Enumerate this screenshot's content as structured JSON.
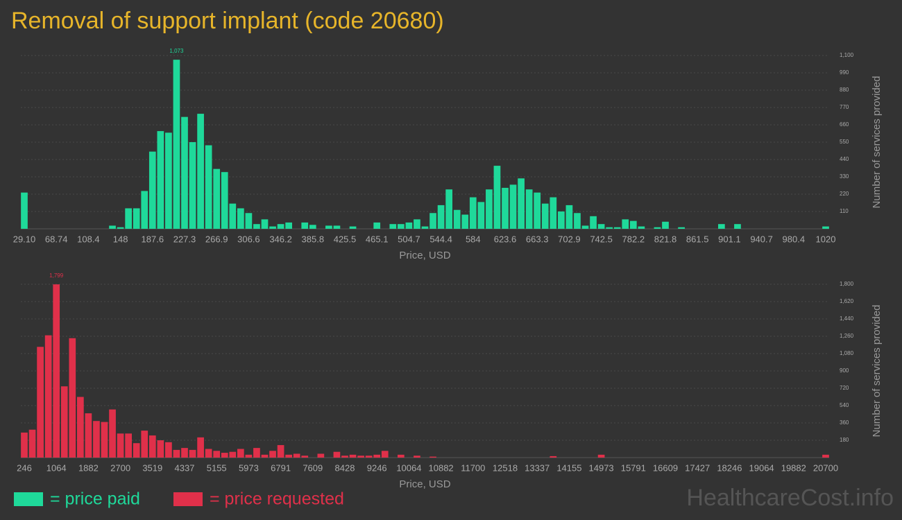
{
  "title": "Removal of support implant (code 20680)",
  "watermark": "HealthcareCost.info",
  "chart_data": [
    {
      "type": "bar",
      "color": "#1fd99a",
      "legend": "= price paid",
      "x_label": "Price, USD",
      "y_label": "Number of services provided",
      "categories": [
        "29.10",
        null,
        null,
        null,
        "68.74",
        null,
        null,
        null,
        "108.4",
        null,
        null,
        null,
        "148",
        null,
        null,
        null,
        "187.6",
        null,
        null,
        null,
        "227.3",
        null,
        null,
        null,
        "266.9",
        null,
        null,
        null,
        "306.6",
        null,
        null,
        null,
        "346.2",
        null,
        null,
        null,
        "385.8",
        null,
        null,
        null,
        "425.5",
        null,
        null,
        null,
        "465.1",
        null,
        null,
        null,
        "504.7",
        null,
        null,
        null,
        "544.4",
        null,
        null,
        null,
        "584",
        null,
        null,
        null,
        "623.6",
        null,
        null,
        null,
        "663.3",
        null,
        null,
        null,
        "702.9",
        null,
        null,
        null,
        "742.5",
        null,
        null,
        null,
        "782.2",
        null,
        null,
        null,
        "821.8",
        null,
        null,
        null,
        "861.5",
        null,
        null,
        null,
        "901.1",
        null,
        null,
        null,
        "940.7",
        null,
        null,
        null,
        "980.4",
        null,
        null,
        null,
        "1020"
      ],
      "values": [
        230,
        0,
        0,
        0,
        0,
        0,
        0,
        0,
        0,
        0,
        0,
        20,
        10,
        130,
        130,
        240,
        490,
        620,
        610,
        1073,
        710,
        550,
        730,
        530,
        380,
        360,
        160,
        130,
        100,
        30,
        60,
        15,
        30,
        40,
        0,
        40,
        25,
        0,
        20,
        20,
        0,
        15,
        0,
        0,
        40,
        0,
        30,
        30,
        40,
        60,
        15,
        100,
        150,
        250,
        120,
        90,
        200,
        170,
        250,
        400,
        260,
        280,
        320,
        250,
        230,
        160,
        200,
        110,
        150,
        100,
        20,
        80,
        30,
        10,
        10,
        60,
        50,
        15,
        0,
        10,
        45,
        0,
        10,
        0,
        0,
        0,
        0,
        30,
        0,
        30,
        0,
        0,
        0,
        0,
        0,
        0,
        0,
        0,
        0,
        0,
        15
      ],
      "value_labels": [
        null,
        null,
        null,
        null,
        null,
        null,
        null,
        null,
        null,
        null,
        null,
        null,
        null,
        null,
        null,
        null,
        null,
        null,
        null,
        "1,073",
        null,
        null,
        null,
        null,
        null,
        null,
        null,
        null,
        null,
        null,
        null,
        null,
        null,
        null,
        null,
        null,
        null,
        null,
        null,
        null,
        null,
        null,
        null,
        null,
        null,
        null,
        null,
        null,
        null,
        null,
        null,
        null,
        null,
        null,
        null,
        null,
        null,
        null,
        null,
        null,
        null,
        null,
        null,
        null,
        null,
        null,
        null,
        null,
        null,
        null,
        null,
        null,
        null,
        null,
        null,
        null,
        null,
        null,
        null,
        null,
        null,
        null,
        null,
        null,
        null,
        null,
        null,
        null,
        null,
        null,
        null,
        null,
        null,
        null,
        null,
        null,
        null,
        null,
        null,
        null,
        null
      ],
      "ylim": [
        0,
        1100
      ],
      "yticks": [
        110,
        220,
        330,
        440,
        550,
        660,
        770,
        880,
        990,
        {
          "value": 1100,
          "label": "1,100"
        }
      ],
      "grid": true
    },
    {
      "type": "bar",
      "color": "#e0304a",
      "legend": "= price requested",
      "x_label": "Price, USD",
      "y_label": "Number of services provided",
      "categories": [
        "246",
        null,
        null,
        null,
        "1064",
        null,
        null,
        null,
        "1882",
        null,
        null,
        null,
        "2700",
        null,
        null,
        null,
        "3519",
        null,
        null,
        null,
        "4337",
        null,
        null,
        null,
        "5155",
        null,
        null,
        null,
        "5973",
        null,
        null,
        null,
        "6791",
        null,
        null,
        null,
        "7609",
        null,
        null,
        null,
        "8428",
        null,
        null,
        null,
        "9246",
        null,
        null,
        null,
        "10064",
        null,
        null,
        null,
        "10882",
        null,
        null,
        null,
        "11700",
        null,
        null,
        null,
        "12518",
        null,
        null,
        null,
        "13337",
        null,
        null,
        null,
        "14155",
        null,
        null,
        null,
        "14973",
        null,
        null,
        null,
        "15791",
        null,
        null,
        null,
        "16609",
        null,
        null,
        null,
        "17427",
        null,
        null,
        null,
        "18246",
        null,
        null,
        null,
        "19064",
        null,
        null,
        null,
        "19882",
        null,
        null,
        null,
        "20700"
      ],
      "values": [
        260,
        290,
        1150,
        1270,
        1799,
        740,
        1240,
        630,
        460,
        380,
        370,
        500,
        250,
        250,
        150,
        280,
        230,
        180,
        160,
        80,
        100,
        80,
        210,
        90,
        70,
        50,
        60,
        90,
        30,
        100,
        30,
        70,
        130,
        30,
        40,
        20,
        0,
        40,
        0,
        60,
        20,
        30,
        20,
        20,
        30,
        70,
        0,
        30,
        0,
        20,
        0,
        10,
        0,
        0,
        0,
        0,
        0,
        0,
        0,
        0,
        0,
        0,
        0,
        0,
        0,
        0,
        15,
        0,
        0,
        0,
        0,
        0,
        30,
        0,
        0,
        0,
        0,
        0,
        0,
        0,
        0,
        0,
        0,
        0,
        0,
        0,
        0,
        0,
        0,
        0,
        0,
        0,
        0,
        0,
        0,
        0,
        0,
        0,
        0,
        0,
        30
      ],
      "value_labels": [
        null,
        null,
        null,
        null,
        "1,799",
        null,
        null,
        null,
        null,
        null,
        null,
        null,
        null,
        null,
        null,
        null,
        null,
        null,
        null,
        null,
        null,
        null,
        null,
        null,
        null,
        null,
        null,
        null,
        null,
        null,
        null,
        null,
        null,
        null,
        null,
        null,
        null,
        null,
        null,
        null,
        null,
        null,
        null,
        null,
        null,
        null,
        null,
        null,
        null,
        null,
        null,
        null,
        null,
        null,
        null,
        null,
        null,
        null,
        null,
        null,
        null,
        null,
        null,
        null,
        null,
        null,
        null,
        null,
        null,
        null,
        null,
        null,
        null,
        null,
        null,
        null,
        null,
        null,
        null,
        null,
        null,
        null,
        null,
        null,
        null,
        null,
        null,
        null,
        null,
        null,
        null,
        null,
        null,
        null,
        null,
        null,
        null,
        null,
        null,
        null,
        null
      ],
      "ylim": [
        0,
        1800
      ],
      "yticks": [
        180,
        360,
        540,
        720,
        900,
        {
          "value": 1080,
          "label": "1,080"
        },
        {
          "value": 1260,
          "label": "1,260"
        },
        {
          "value": 1440,
          "label": "1,440"
        },
        {
          "value": 1620,
          "label": "1,620"
        },
        {
          "value": 1800,
          "label": "1,800"
        }
      ],
      "grid": true
    }
  ]
}
